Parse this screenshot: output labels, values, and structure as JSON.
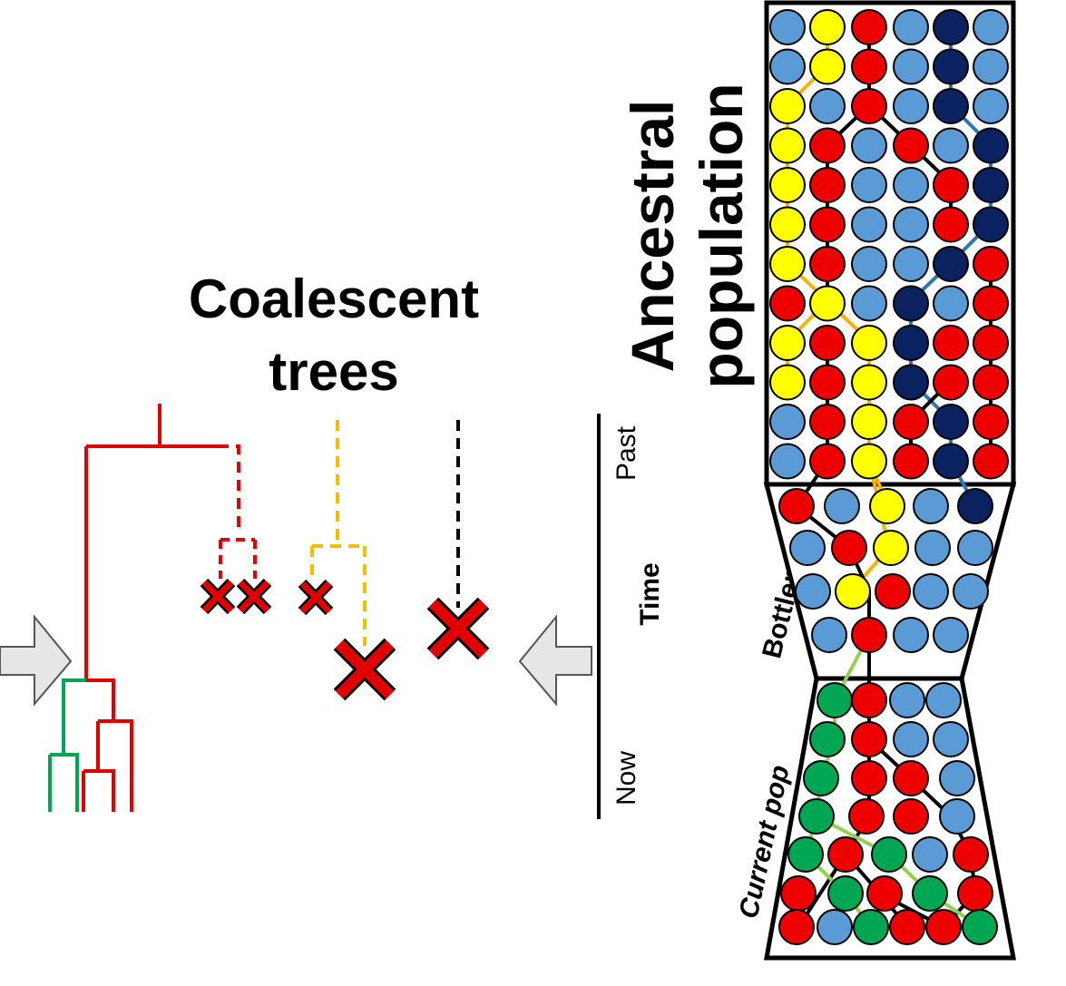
{
  "title": {
    "line1": "Coalescent",
    "line2": "trees"
  },
  "time_axis": {
    "past": "Past",
    "time": "Time",
    "now": "Now"
  },
  "population_labels": {
    "ancestral_line1": "Ancestral",
    "ancestral_line2": "population",
    "bottleneck": "Bottleneck",
    "current": "Current pop"
  },
  "colors": {
    "red": "#ee0000",
    "yellow": "#ffff00",
    "light_blue": "#5b9bd5",
    "navy": "#0b2261",
    "green": "#00a651",
    "tree_red": "#e00000",
    "tree_yellow": "#f0c000",
    "tree_green": "#00a651",
    "lineage_blue": "#2e75b6",
    "lineage_green": "#92d050",
    "lineage_orange": "#f4b400",
    "arrow_fill": "#e6e6e6"
  },
  "populations": {
    "ancestral": [
      "LYRLNL",
      "LYRLNL",
      "YLRLNL",
      "YRLRLN",
      "YRLLRN",
      "YRLLRN",
      "YRLLNR",
      "RYLNLR",
      "YRYNRR",
      "YRYNRR",
      "LRYRNR",
      "LRYRNR"
    ],
    "bottleneck": [
      "RLYLN",
      "LRYLL",
      "LYRLL",
      "LRLL"
    ],
    "current": [
      "GRLL",
      "GRLL",
      "GRRL",
      "GRRL",
      "GRGLR",
      "RGRGR",
      "RLGRRG"
    ]
  }
}
